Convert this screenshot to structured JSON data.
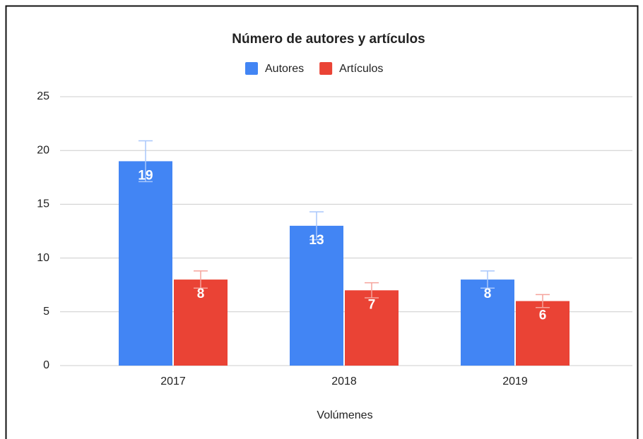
{
  "chart_data": {
    "type": "bar",
    "title": "Número de autores y artículos",
    "x_label": "Volúmenes",
    "categories": [
      "2017",
      "2018",
      "2019"
    ],
    "series": [
      {
        "name": "Autores",
        "color": "#4285f4",
        "error_color": "#a9c7fb",
        "values": [
          19,
          13,
          8
        ],
        "errors": [
          1.9,
          1.3,
          0.8
        ]
      },
      {
        "name": "Artículos",
        "color": "#ea4335",
        "error_color": "#f5a39b",
        "values": [
          8,
          7,
          6
        ],
        "errors": [
          0.8,
          0.7,
          0.6
        ]
      }
    ],
    "ylim": [
      0,
      25
    ],
    "yticks": [
      0,
      5,
      10,
      15,
      20,
      25
    ],
    "grid": true,
    "legend": "top"
  }
}
